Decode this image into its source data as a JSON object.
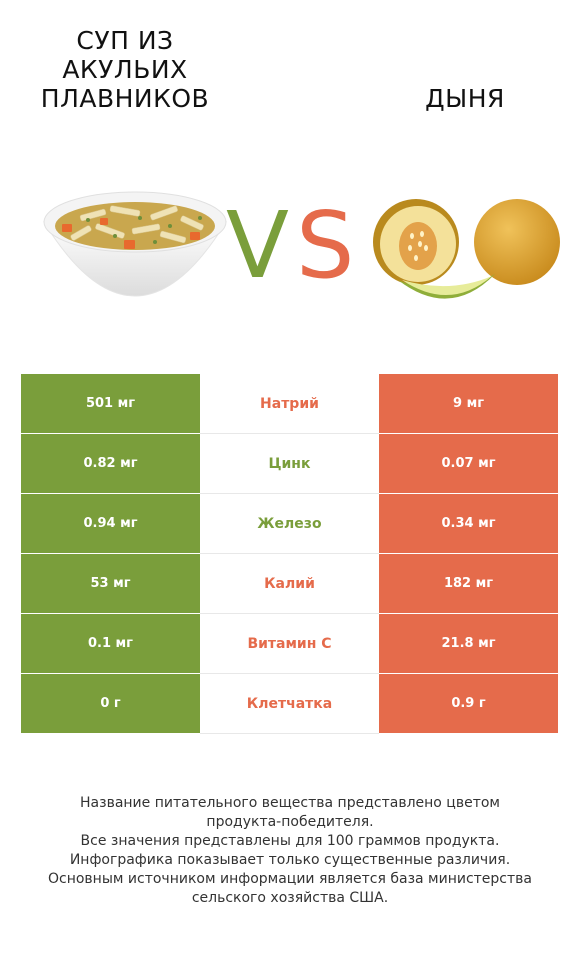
{
  "header": {
    "left_title": "СУП ИЗ\nАКУЛЬИХ\nПЛАВНИКОВ",
    "right_title": "ДЫНЯ",
    "vs_v": "V",
    "vs_s": "S"
  },
  "colors": {
    "left_winner": "#7a9e3b",
    "right_winner": "#e56b4b"
  },
  "rows": [
    {
      "left": "501 мг",
      "name": "Натрий",
      "right": "9 мг",
      "winner": "right"
    },
    {
      "left": "0.82 мг",
      "name": "Цинк",
      "right": "0.07 мг",
      "winner": "left"
    },
    {
      "left": "0.94 мг",
      "name": "Железо",
      "right": "0.34 мг",
      "winner": "left"
    },
    {
      "left": "53 мг",
      "name": "Калий",
      "right": "182 мг",
      "winner": "right"
    },
    {
      "left": "0.1 мг",
      "name": "Витамин C",
      "right": "21.8 мг",
      "winner": "right"
    },
    {
      "left": "0 г",
      "name": "Клетчатка",
      "right": "0.9 г",
      "winner": "right"
    }
  ],
  "footer": {
    "line1": "Название питательного вещества представлено цветом",
    "line2": "продукта-победителя.",
    "line3": "Все значения представлены для 100 граммов продукта.",
    "line4": "Инфографика показывает только существенные различия.",
    "line5": "Основным источником информации является база министерства",
    "line6": "сельского хозяйства США."
  }
}
